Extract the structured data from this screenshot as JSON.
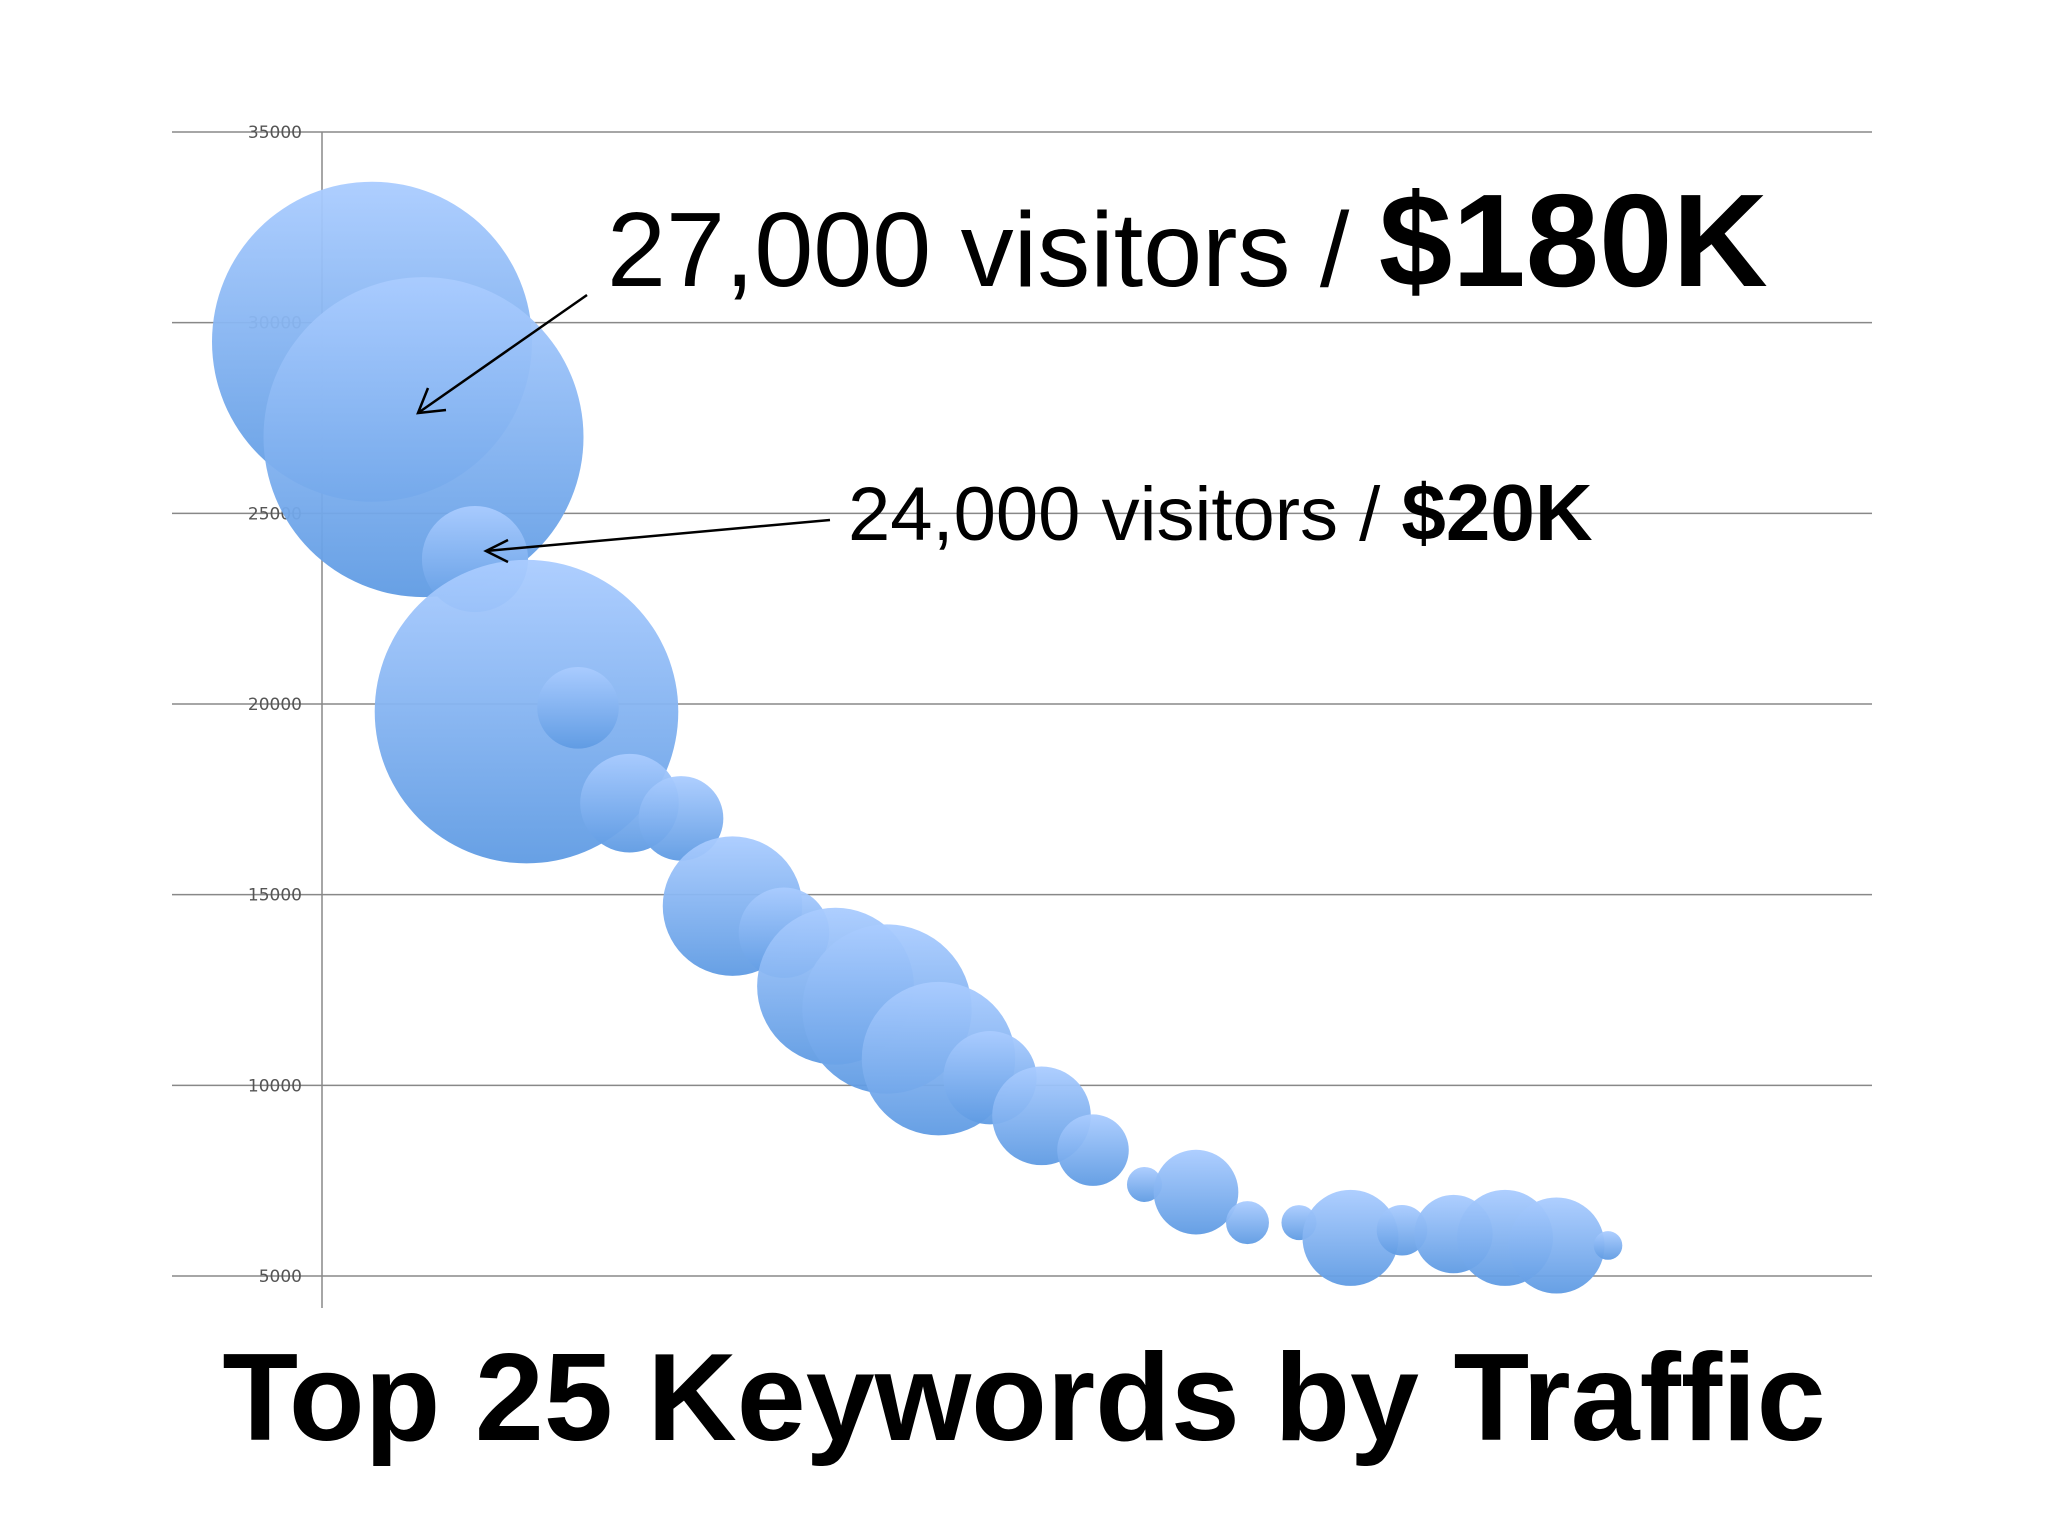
{
  "chart_data": {
    "type": "scatter",
    "title": "Top 25 Keywords by Traffic",
    "xlabel": "",
    "ylabel": "",
    "ylim": [
      5000,
      35000
    ],
    "yticks": [
      5000,
      10000,
      15000,
      20000,
      25000,
      30000,
      35000
    ],
    "grid": true,
    "legend": "none",
    "bubble": true,
    "color": "#7aaef0",
    "points": [
      {
        "rank": 1,
        "y": 29500,
        "size": 100
      },
      {
        "rank": 2,
        "y": 27000,
        "size": 100
      },
      {
        "rank": 3,
        "y": 23800,
        "size": 11
      },
      {
        "rank": 4,
        "y": 19800,
        "size": 90
      },
      {
        "rank": 5,
        "y": 19900,
        "size": 6.5
      },
      {
        "rank": 6,
        "y": 17400,
        "size": 9.5
      },
      {
        "rank": 7,
        "y": 17000,
        "size": 7
      },
      {
        "rank": 8,
        "y": 14700,
        "size": 19
      },
      {
        "rank": 9,
        "y": 14000,
        "size": 8
      },
      {
        "rank": 10,
        "y": 12600,
        "size": 24
      },
      {
        "rank": 11,
        "y": 12000,
        "size": 28
      },
      {
        "rank": 12,
        "y": 10700,
        "size": 23
      },
      {
        "rank": 13,
        "y": 10200,
        "size": 8.5
      },
      {
        "rank": 14,
        "y": 9200,
        "size": 9.5
      },
      {
        "rank": 15,
        "y": 8300,
        "size": 5
      },
      {
        "rank": 16,
        "y": 7400,
        "size": 1.2
      },
      {
        "rank": 17,
        "y": 7200,
        "size": 7
      },
      {
        "rank": 18,
        "y": 6400,
        "size": 1.8
      },
      {
        "rank": 19,
        "y": 6400,
        "size": 1.2
      },
      {
        "rank": 20,
        "y": 6000,
        "size": 9
      },
      {
        "rank": 21,
        "y": 6200,
        "size": 2.5
      },
      {
        "rank": 22,
        "y": 6100,
        "size": 6
      },
      {
        "rank": 23,
        "y": 6000,
        "size": 9
      },
      {
        "rank": 24,
        "y": 5800,
        "size": 9
      },
      {
        "rank": 25,
        "y": 5800,
        "size": 0.8
      }
    ],
    "annotations": [
      {
        "text": "27,000 visitors / ",
        "value": "$180K",
        "points_to_rank": 2
      },
      {
        "text": "24,000 visitors / ",
        "value": "$20K",
        "points_to_rank": 3
      }
    ]
  }
}
